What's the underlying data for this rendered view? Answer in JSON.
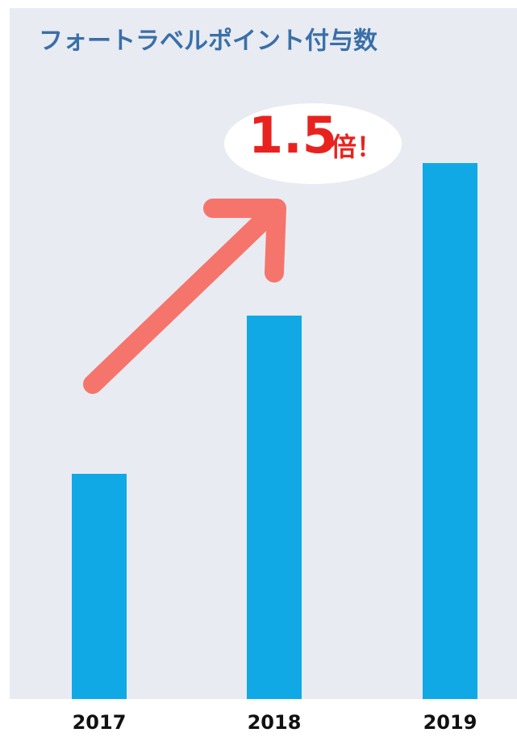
{
  "chart_data": {
    "type": "bar",
    "title": "フォートラベルポイント付与数",
    "categories": [
      "2017",
      "2018",
      "2019"
    ],
    "values": [
      279,
      475,
      664
    ],
    "color": "#10a9e6",
    "ylim": [
      0,
      700
    ],
    "annotation": {
      "text": "1.5",
      "suffix": "倍！"
    }
  }
}
